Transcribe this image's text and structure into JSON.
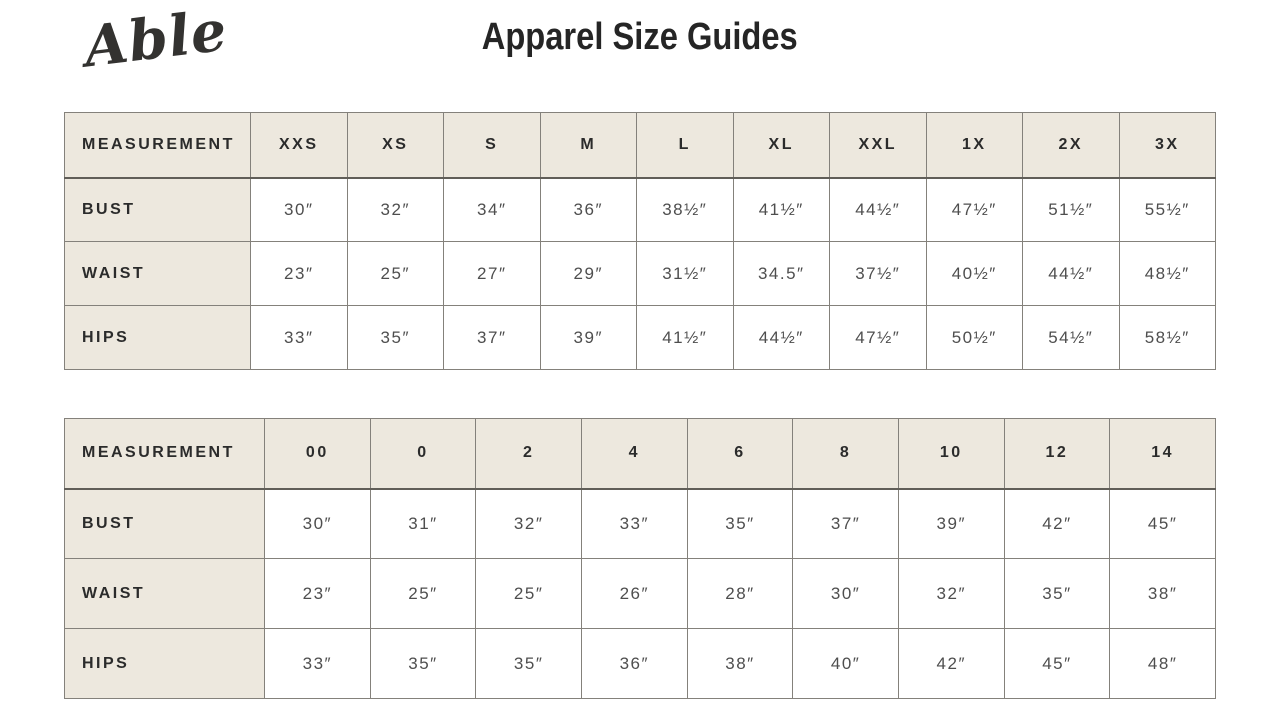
{
  "header": {
    "logo_text": "Able",
    "title": "Apparel Size Guides"
  },
  "colors": {
    "header_cell_bg": "#EDE8DE",
    "table_border": "#84817B",
    "header_underline": "#615E58",
    "label_text": "#2B2B2B",
    "value_text": "#4E4E4E",
    "title_text": "#252525",
    "page_bg": "#FFFFFF"
  },
  "tables": [
    {
      "name": "letter-size-guide",
      "columns": [
        "MEASUREMENT",
        "XXS",
        "XS",
        "S",
        "M",
        "L",
        "XL",
        "XXL",
        "1X",
        "2X",
        "3X"
      ],
      "rows": [
        {
          "label": "BUST",
          "values": [
            "30″",
            "32″",
            "34″",
            "36″",
            "38½″",
            "41½″",
            "44½″",
            "47½″",
            "51½″",
            "55½″"
          ]
        },
        {
          "label": "WAIST",
          "values": [
            "23″",
            "25″",
            "27″",
            "29″",
            "31½″",
            "34.5″",
            "37½″",
            "40½″",
            "44½″",
            "48½″"
          ]
        },
        {
          "label": "HIPS",
          "values": [
            "33″",
            "35″",
            "37″",
            "39″",
            "41½″",
            "44½″",
            "47½″",
            "50½″",
            "54½″",
            "58½″"
          ]
        }
      ]
    },
    {
      "name": "numeric-size-guide",
      "columns": [
        "MEASUREMENT",
        "00",
        "0",
        "2",
        "4",
        "6",
        "8",
        "10",
        "12",
        "14"
      ],
      "rows": [
        {
          "label": "BUST",
          "values": [
            "30″",
            "31″",
            "32″",
            "33″",
            "35″",
            "37″",
            "39″",
            "42″",
            "45″"
          ]
        },
        {
          "label": "WAIST",
          "values": [
            "23″",
            "25″",
            "25″",
            "26″",
            "28″",
            "30″",
            "32″",
            "35″",
            "38″"
          ]
        },
        {
          "label": "HIPS",
          "values": [
            "33″",
            "35″",
            "35″",
            "36″",
            "38″",
            "40″",
            "42″",
            "45″",
            "48″"
          ]
        }
      ]
    }
  ],
  "chart_data": [
    {
      "type": "table",
      "title": "Apparel Size Guides — letter sizes",
      "categories": [
        "XXS",
        "XS",
        "S",
        "M",
        "L",
        "XL",
        "XXL",
        "1X",
        "2X",
        "3X"
      ],
      "series": [
        {
          "name": "BUST",
          "values": [
            30,
            32,
            34,
            36,
            38.5,
            41.5,
            44.5,
            47.5,
            51.5,
            55.5
          ]
        },
        {
          "name": "WAIST",
          "values": [
            23,
            25,
            27,
            29,
            31.5,
            34.5,
            37.5,
            40.5,
            44.5,
            48.5
          ]
        },
        {
          "name": "HIPS",
          "values": [
            33,
            35,
            37,
            39,
            41.5,
            44.5,
            47.5,
            50.5,
            54.5,
            58.5
          ]
        }
      ],
      "unit": "inches"
    },
    {
      "type": "table",
      "title": "Apparel Size Guides — numeric sizes",
      "categories": [
        "00",
        "0",
        "2",
        "4",
        "6",
        "8",
        "10",
        "12",
        "14"
      ],
      "series": [
        {
          "name": "BUST",
          "values": [
            30,
            31,
            32,
            33,
            35,
            37,
            39,
            42,
            45
          ]
        },
        {
          "name": "WAIST",
          "values": [
            23,
            25,
            25,
            26,
            28,
            30,
            32,
            35,
            38
          ]
        },
        {
          "name": "HIPS",
          "values": [
            33,
            35,
            35,
            36,
            38,
            40,
            42,
            45,
            48
          ]
        }
      ],
      "unit": "inches"
    }
  ]
}
